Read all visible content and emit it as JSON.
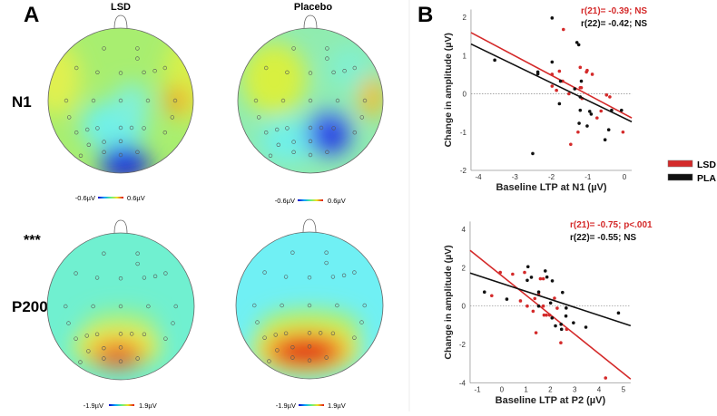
{
  "panel_a": {
    "letter": "A",
    "columns": [
      "LSD",
      "Placebo"
    ],
    "rows": [
      {
        "label": "N1",
        "significance": "",
        "colorbar": {
          "min": "-0.6µV",
          "max": "0.6µV"
        }
      },
      {
        "label": "P200",
        "significance": "***",
        "colorbar": {
          "min": "-1.9µV",
          "max": "1.9µV"
        }
      }
    ]
  },
  "panel_b": {
    "letter": "B"
  },
  "legend": [
    {
      "label": "LSD",
      "color": "#d42a2a"
    },
    {
      "label": "PLA",
      "color": "#111111"
    }
  ],
  "chart_data": [
    {
      "type": "scatter",
      "xlabel": "Baseline LTP at N1 (µV)",
      "ylabel": "Change in amplitude (µV)",
      "xlim": [
        -4.2,
        0.2
      ],
      "ylim": [
        -2,
        2.2
      ],
      "xticks": [
        -4,
        -3,
        -2,
        -1,
        0
      ],
      "yticks": [
        -2,
        -1,
        0,
        1,
        2
      ],
      "annotations": [
        {
          "text": "r(21)= -0.39; NS",
          "series": "LSD"
        },
        {
          "text": "r(22)= -0.42; NS",
          "series": "PLA"
        }
      ],
      "series": [
        {
          "name": "LSD",
          "color": "#d42a2a",
          "points": [
            [
              -1.67,
              1.68
            ],
            [
              -1.98,
              0.51
            ],
            [
              -1.78,
              0.59
            ],
            [
              -1.69,
              0.33
            ],
            [
              -1.98,
              0.2
            ],
            [
              -1.86,
              0.09
            ],
            [
              -1.52,
              0
            ],
            [
              -1.21,
              0.69
            ],
            [
              -1.04,
              0.57
            ],
            [
              -1.02,
              0.61
            ],
            [
              -0.88,
              0.51
            ],
            [
              -1.21,
              0.16
            ],
            [
              -1.18,
              0.16
            ],
            [
              -1.16,
              -0.12
            ],
            [
              -0.49,
              -0.03
            ],
            [
              -0.4,
              -0.08
            ],
            [
              -0.64,
              -0.45
            ],
            [
              -0.75,
              -0.63
            ],
            [
              -1.27,
              -1.0
            ],
            [
              -1.47,
              -1.32
            ],
            [
              -0.04,
              -1.0
            ]
          ],
          "fit": [
            [
              -4.2,
              1.6
            ],
            [
              0.2,
              -0.63
            ]
          ]
        },
        {
          "name": "PLA",
          "color": "#111111",
          "points": [
            [
              -3.55,
              0.88
            ],
            [
              -1.98,
              1.98
            ],
            [
              -1.98,
              0.83
            ],
            [
              -2.37,
              0.57
            ],
            [
              -2.37,
              0.52
            ],
            [
              -1.75,
              0.33
            ],
            [
              -1.3,
              1.34
            ],
            [
              -1.25,
              1.28
            ],
            [
              -1.18,
              0.33
            ],
            [
              -1.36,
              0.13
            ],
            [
              -1.21,
              -0.08
            ],
            [
              -1.78,
              -0.26
            ],
            [
              -1.21,
              -0.43
            ],
            [
              -0.95,
              -0.46
            ],
            [
              -0.91,
              -0.53
            ],
            [
              -1.24,
              -0.77
            ],
            [
              -1.02,
              -0.84
            ],
            [
              -2.51,
              -1.56
            ],
            [
              -0.43,
              -0.94
            ],
            [
              -0.53,
              -1.2
            ],
            [
              -0.35,
              -0.43
            ],
            [
              -0.08,
              -0.43
            ]
          ],
          "fit": [
            [
              -4.2,
              1.3
            ],
            [
              0.2,
              -0.73
            ]
          ]
        }
      ]
    },
    {
      "type": "scatter",
      "xlabel": "Baseline LTP at P2 (µV)",
      "ylabel": "Change in amplitude (µV)",
      "xlim": [
        -1.3,
        5.3
      ],
      "ylim": [
        -4,
        4.4
      ],
      "xticks": [
        -1,
        0,
        1,
        2,
        3,
        4,
        5
      ],
      "yticks": [
        -4,
        -2,
        0,
        2,
        4
      ],
      "annotations": [
        {
          "text": "r(21)= -0.75; p<.001",
          "series": "LSD"
        },
        {
          "text": "r(22)= -0.55; NS",
          "series": "PLA"
        }
      ],
      "series": [
        {
          "name": "LSD",
          "color": "#d42a2a",
          "points": [
            [
              -0.41,
              0.54
            ],
            [
              -0.06,
              1.75
            ],
            [
              0.45,
              1.66
            ],
            [
              0.94,
              1.75
            ],
            [
              0.77,
              0.27
            ],
            [
              1.05,
              0
            ],
            [
              1.29,
              -0.27
            ],
            [
              1.36,
              0.39
            ],
            [
              1.59,
              1.42
            ],
            [
              1.71,
              1.42
            ],
            [
              1.52,
              0.6
            ],
            [
              1.71,
              0
            ],
            [
              1.74,
              -0.47
            ],
            [
              1.84,
              -0.47
            ],
            [
              1.97,
              -0.47
            ],
            [
              2.17,
              0.41
            ],
            [
              2.28,
              -0.11
            ],
            [
              1.41,
              -1.39
            ],
            [
              2.43,
              -1.91
            ],
            [
              2.67,
              -1.21
            ],
            [
              4.27,
              -3.74
            ]
          ],
          "fit": [
            [
              -1.3,
              2.9
            ],
            [
              5.3,
              -3.8
            ]
          ]
        },
        {
          "name": "PLA",
          "color": "#111111",
          "points": [
            [
              -0.71,
              0.73
            ],
            [
              0.21,
              0.36
            ],
            [
              1.08,
              2.05
            ],
            [
              1.05,
              1.34
            ],
            [
              1.22,
              1.5
            ],
            [
              1.52,
              0.73
            ],
            [
              1.79,
              1.83
            ],
            [
              1.86,
              1.51
            ],
            [
              2.08,
              1.31
            ],
            [
              2.01,
              0.16
            ],
            [
              1.52,
              0
            ],
            [
              2.07,
              -0.62
            ],
            [
              2.21,
              -1.03
            ],
            [
              2.44,
              -0.95
            ],
            [
              2.46,
              -1.21
            ],
            [
              2.5,
              0.71
            ],
            [
              2.65,
              -0.1
            ],
            [
              2.64,
              -0.52
            ],
            [
              2.95,
              -0.87
            ],
            [
              3.46,
              -1.1
            ],
            [
              4.8,
              -0.36
            ]
          ],
          "fit": [
            [
              -1.3,
              1.72
            ],
            [
              5.3,
              -1.02
            ]
          ]
        }
      ]
    }
  ]
}
